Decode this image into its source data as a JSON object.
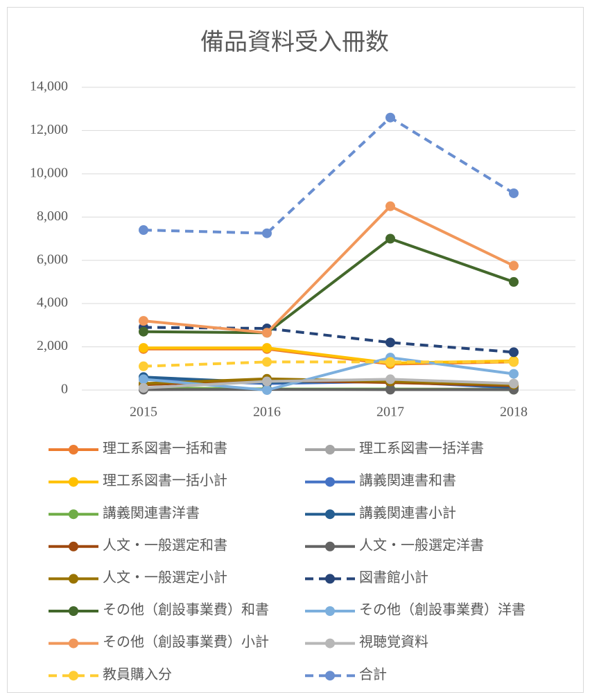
{
  "chart_data": {
    "type": "line",
    "title": "備品資料受入冊数",
    "categories": [
      "2015",
      "2016",
      "2017",
      "2018"
    ],
    "ylim": [
      0,
      14000
    ],
    "yticks": [
      0,
      {
        "value": 2000,
        "label": "2,000"
      },
      {
        "value": 4000,
        "label": "4,000"
      },
      {
        "value": 6000,
        "label": "6,000"
      },
      {
        "value": 8000,
        "label": "8,000"
      },
      {
        "value": 10000,
        "label": "10,000"
      },
      {
        "value": 12000,
        "label": "12,000"
      },
      {
        "value": 14000,
        "label": "14,000"
      }
    ],
    "grid": true,
    "legend": "bottom",
    "series": [
      {
        "name": "理工系図書一括和書",
        "color": "#ED7D31",
        "dashed": false,
        "values": [
          1900,
          1900,
          1200,
          1300
        ]
      },
      {
        "name": "理工系図書一括洋書",
        "color": "#A5A5A5",
        "dashed": false,
        "values": [
          50,
          50,
          50,
          50
        ]
      },
      {
        "name": "理工系図書一括小計",
        "color": "#FFC000",
        "dashed": false,
        "values": [
          1950,
          1950,
          1250,
          1350
        ]
      },
      {
        "name": "講義関連書和書",
        "color": "#4472C4",
        "dashed": false,
        "values": [
          500,
          300,
          400,
          100
        ]
      },
      {
        "name": "講義関連書洋書",
        "color": "#70AD47",
        "dashed": false,
        "values": [
          100,
          50,
          50,
          20
        ]
      },
      {
        "name": "講義関連書小計",
        "color": "#255E91",
        "dashed": false,
        "values": [
          600,
          350,
          450,
          120
        ]
      },
      {
        "name": "人文・一般選定和書",
        "color": "#9E480E",
        "dashed": false,
        "values": [
          250,
          450,
          350,
          200
        ]
      },
      {
        "name": "人文・一般選定洋書",
        "color": "#636363",
        "dashed": false,
        "values": [
          20,
          30,
          20,
          20
        ]
      },
      {
        "name": "人文・一般選定小計",
        "color": "#997300",
        "dashed": false,
        "values": [
          300,
          520,
          400,
          250
        ]
      },
      {
        "name": "図書館小計",
        "color": "#264478",
        "dashed": true,
        "values": [
          2900,
          2850,
          2200,
          1750
        ]
      },
      {
        "name": "その他（創設事業費）和書",
        "color": "#43682B",
        "dashed": false,
        "values": [
          2700,
          2650,
          7000,
          5000
        ]
      },
      {
        "name": "その他（創設事業費）洋書",
        "color": "#7CAFDD",
        "dashed": false,
        "values": [
          500,
          0,
          1500,
          750
        ]
      },
      {
        "name": "その他（創設事業費）小計",
        "color": "#F1975A",
        "dashed": false,
        "values": [
          3200,
          2650,
          8500,
          5750
        ]
      },
      {
        "name": "視聴覚資料",
        "color": "#B7B7B7",
        "dashed": false,
        "values": [
          100,
          400,
          500,
          300
        ]
      },
      {
        "name": "教員購入分",
        "color": "#FFCD33",
        "dashed": true,
        "values": [
          1100,
          1300,
          1300,
          1300
        ]
      },
      {
        "name": "合計",
        "color": "#698ED0",
        "dashed": true,
        "values": [
          7400,
          7250,
          12600,
          9100
        ]
      }
    ]
  }
}
